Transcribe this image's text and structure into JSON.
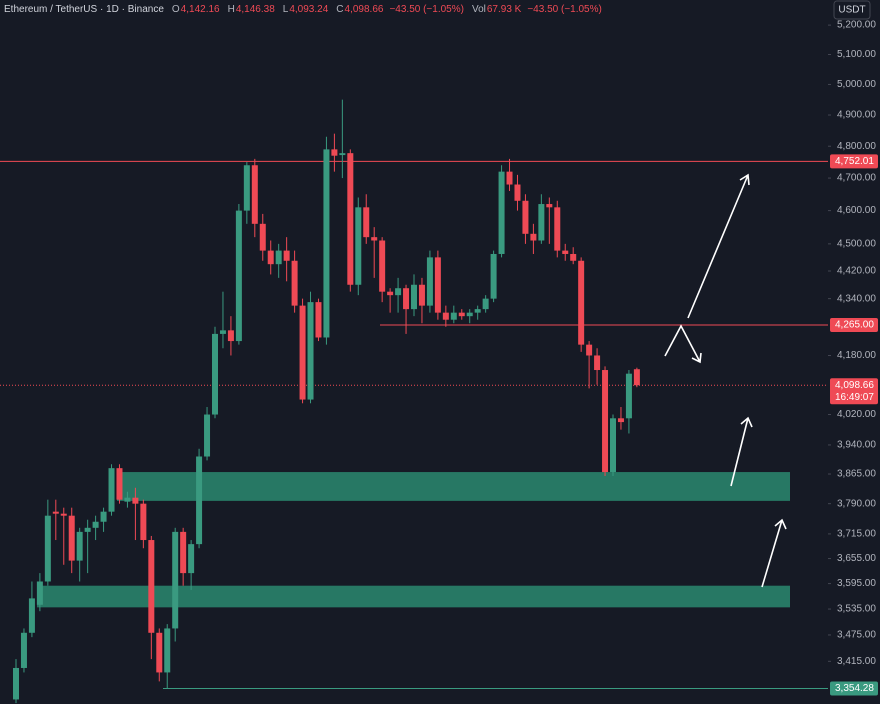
{
  "chart_data": {
    "type": "candlestick",
    "title": "Ethereum / TetherUS · 1D · Binance",
    "header": [
      {
        "key": "O",
        "value": "4,142.16"
      },
      {
        "key": "H",
        "value": "4,146.38"
      },
      {
        "key": "L",
        "value": "4,093.24"
      },
      {
        "key": "C",
        "value": "4,098.66"
      },
      {
        "key": "",
        "value": "−43.50 (−1.05%)"
      },
      {
        "key": "Vol",
        "value": "67.93 K"
      },
      {
        "key": "",
        "value": "−43.50 (−1.05%)"
      }
    ],
    "currency": "USDT",
    "log_scale": true,
    "grid": false,
    "up_color": "#3a9a80",
    "down_color": "#ef4a55",
    "ylim": [
      3320,
      5287
    ],
    "yticks": [
      {
        "value": 5200,
        "label": "5,200.00"
      },
      {
        "value": 5100,
        "label": "5,100.00"
      },
      {
        "value": 5000,
        "label": "5,000.00"
      },
      {
        "value": 4900,
        "label": "4,900.00"
      },
      {
        "value": 4800,
        "label": "4,800.00"
      },
      {
        "value": 4700,
        "label": "4,700.00"
      },
      {
        "value": 4600,
        "label": "4,600.00"
      },
      {
        "value": 4500,
        "label": "4,500.00"
      },
      {
        "value": 4420,
        "label": "4,420.00"
      },
      {
        "value": 4340,
        "label": "4,340.00"
      },
      {
        "value": 4180,
        "label": "4,180.00"
      },
      {
        "value": 4020,
        "label": "4,020.00"
      },
      {
        "value": 3940,
        "label": "3,940.00"
      },
      {
        "value": 3865,
        "label": "3,865.00"
      },
      {
        "value": 3790,
        "label": "3,790.00"
      },
      {
        "value": 3715,
        "label": "3,715.00"
      },
      {
        "value": 3655,
        "label": "3,655.00"
      },
      {
        "value": 3595,
        "label": "3,595.00"
      },
      {
        "value": 3535,
        "label": "3,535.00"
      },
      {
        "value": 3475,
        "label": "3,475.00"
      },
      {
        "value": 3415,
        "label": "3,415.00"
      }
    ],
    "levels": [
      {
        "value": 4752.01,
        "label": "4,752.01",
        "color": "#ef4a55"
      },
      {
        "value": 4265,
        "label": "4,265.00",
        "color": "#ef4a55"
      },
      {
        "value": 3354.28,
        "label": "3,354.28",
        "color": "#3a9a80"
      },
      {
        "value": 4098.66,
        "label": "4,098.66",
        "color": "#ef4a55",
        "style": "dotted",
        "countdown": "16:49:07"
      }
    ],
    "zones": [
      {
        "low": 3797,
        "high": 3870,
        "color": "#2a8a70"
      },
      {
        "low": 3539,
        "high": 3590,
        "color": "#2a8a70"
      }
    ],
    "open": [
      3330,
      3400,
      3480,
      3545,
      3600,
      3770,
      3765,
      3760,
      3650,
      3720,
      3730,
      3745,
      3770,
      3880,
      3795,
      3805,
      3790,
      3700,
      3480,
      3390,
      3490,
      3720,
      3620,
      3690,
      3910,
      4020,
      4240,
      4250,
      4220,
      4600,
      4740,
      4560,
      4480,
      4440,
      4480,
      4450,
      4320,
      4060,
      4330,
      4230,
      4790,
      4772,
      4778,
      4380,
      4610,
      4520,
      4510,
      4360,
      4350,
      4370,
      4310,
      4380,
      4320,
      4460,
      4300,
      4280,
      4300,
      4290,
      4300,
      4310,
      4340,
      4470,
      4720,
      4680,
      4630,
      4530,
      4510,
      4620,
      4610,
      4480,
      4470,
      4450,
      4210,
      4180,
      4140,
      3870,
      4010,
      4010,
      4142.16
    ],
    "high": [
      3420,
      3490,
      3600,
      3620,
      3800,
      3800,
      3780,
      3780,
      3730,
      3750,
      3760,
      3780,
      3890,
      3890,
      3820,
      3830,
      3800,
      3710,
      3490,
      3500,
      3730,
      3730,
      3700,
      3930,
      4040,
      4260,
      4360,
      4290,
      4620,
      4750,
      4760,
      4590,
      4510,
      4500,
      4520,
      4480,
      4340,
      4360,
      4340,
      4830,
      4840,
      4950,
      4790,
      4640,
      4650,
      4550,
      4520,
      4370,
      4400,
      4380,
      4410,
      4400,
      4480,
      4480,
      4320,
      4320,
      4310,
      4310,
      4320,
      4350,
      4480,
      4740,
      4760,
      4710,
      4650,
      4560,
      4650,
      4640,
      4630,
      4500,
      4490,
      4460,
      4220,
      4200,
      4150,
      4020,
      4040,
      4140,
      4146.38
    ],
    "low": [
      3322,
      3390,
      3470,
      3530,
      3590,
      3700,
      3640,
      3620,
      3600,
      3620,
      3700,
      3720,
      3760,
      3790,
      3780,
      3700,
      3680,
      3420,
      3370,
      3354,
      3460,
      3590,
      3580,
      3680,
      3900,
      4010,
      4200,
      4180,
      4210,
      4560,
      4520,
      4450,
      4410,
      4400,
      4390,
      4300,
      4050,
      4050,
      4220,
      4210,
      4720,
      4700,
      4360,
      4350,
      4500,
      4400,
      4330,
      4300,
      4300,
      4240,
      4290,
      4270,
      4300,
      4280,
      4260,
      4270,
      4280,
      4270,
      4280,
      4300,
      4330,
      4460,
      4660,
      4600,
      4500,
      4470,
      4500,
      4500,
      4460,
      4450,
      4440,
      4190,
      4090,
      4100,
      3860,
      3860,
      3980,
      3970,
      4093.24
    ],
    "close": [
      3400,
      3480,
      3560,
      3600,
      3760,
      3765,
      3760,
      3650,
      3720,
      3730,
      3745,
      3770,
      3880,
      3800,
      3805,
      3790,
      3700,
      3480,
      3390,
      3490,
      3720,
      3620,
      3690,
      3910,
      4020,
      4240,
      4250,
      4220,
      4600,
      4740,
      4560,
      4480,
      4440,
      4480,
      4450,
      4320,
      4060,
      4330,
      4230,
      4790,
      4770,
      4778,
      4380,
      4610,
      4520,
      4510,
      4360,
      4350,
      4370,
      4310,
      4380,
      4320,
      4460,
      4300,
      4280,
      4300,
      4290,
      4300,
      4310,
      4340,
      4470,
      4720,
      4680,
      4630,
      4530,
      4510,
      4620,
      4610,
      4480,
      4470,
      4450,
      4210,
      4180,
      4140,
      3870,
      4010,
      4000,
      4130,
      4098.66
    ]
  }
}
